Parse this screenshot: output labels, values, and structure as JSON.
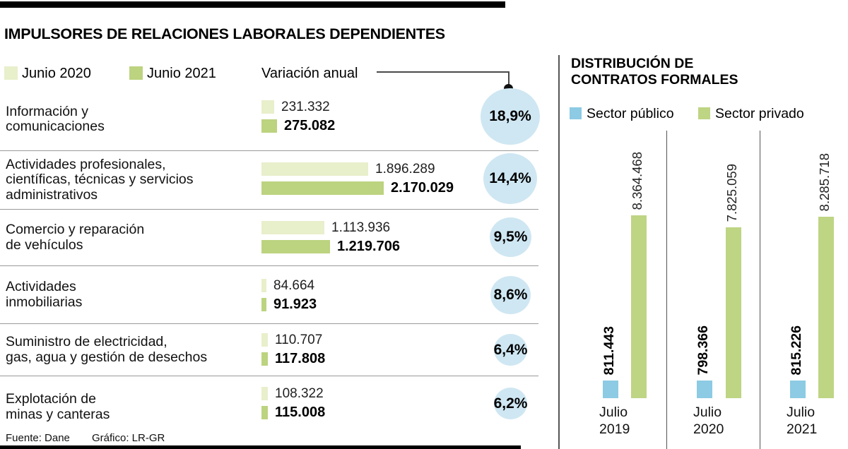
{
  "title": "IMPULSORES DE RELACIONES LABORALES DEPENDIENTES",
  "footer": {
    "source": "Fuente: Dane",
    "credit": "Gráfico: LR-GR"
  },
  "colors": {
    "junio2020": "#e8efcb",
    "junio2021": "#bcd37f",
    "sector_publico": "#8ccbe3",
    "sector_privado": "#bed584",
    "bubble": "#cfe7f2"
  },
  "left_chart": {
    "legend_2020": "Junio 2020",
    "legend_2021": "Junio 2021",
    "legend_variation": "Variación anual",
    "rows": [
      {
        "label_lines": [
          "Información y",
          "comunicaciones"
        ],
        "v2020": 231332,
        "v2021": 275082,
        "v2020_label": "231.332",
        "v2021_label": "275.082",
        "pct_label": "18,9%",
        "bubble_d": 84
      },
      {
        "label_lines": [
          "Actividades profesionales,",
          "científicas, técnicas y servicios",
          "administrativos"
        ],
        "v2020": 1896289,
        "v2021": 2170029,
        "v2020_label": "1.896.289",
        "v2021_label": "2.170.029",
        "pct_label": "14,4%",
        "bubble_d": 76
      },
      {
        "label_lines": [
          "Comercio y reparación",
          "de vehículos"
        ],
        "v2020": 1113936,
        "v2021": 1219706,
        "v2020_label": "1.113.936",
        "v2021_label": "1.219.706",
        "pct_label": "9,5%",
        "bubble_d": 59
      },
      {
        "label_lines": [
          "Actividades",
          "inmobiliarias"
        ],
        "v2020": 84664,
        "v2021": 91923,
        "v2020_label": "84.664",
        "v2021_label": "91.923",
        "pct_label": "8,6%",
        "bubble_d": 57
      },
      {
        "label_lines": [
          "Suministro de electricidad,",
          "gas, agua y gestión de desechos"
        ],
        "v2020": 110707,
        "v2021": 117808,
        "v2020_label": "110.707",
        "v2021_label": "117.808",
        "pct_label": "6,4%",
        "bubble_d": 47
      },
      {
        "label_lines": [
          "Explotación de",
          "minas y canteras"
        ],
        "v2020": 108322,
        "v2021": 115008,
        "v2020_label": "108.322",
        "v2021_label": "115.008",
        "pct_label": "6,2%",
        "bubble_d": 47
      }
    ]
  },
  "right_chart": {
    "heading_line1": "DISTRIBUCIÓN DE",
    "heading_line2": "CONTRATOS FORMALES",
    "legend_public": "Sector público",
    "legend_private": "Sector privado",
    "columns": [
      {
        "label_line1": "Julio",
        "label_line2": "2019",
        "public": 811443,
        "private": 8364468,
        "public_label": "811.443",
        "private_label": "8.364.468"
      },
      {
        "label_line1": "Julio",
        "label_line2": "2020",
        "public": 798366,
        "private": 7825059,
        "public_label": "798.366",
        "private_label": "7.825.059"
      },
      {
        "label_line1": "Julio",
        "label_line2": "2021",
        "public": 815226,
        "private": 8285718,
        "public_label": "815.226",
        "private_label": "8.285.718"
      }
    ]
  },
  "chart_data": [
    {
      "type": "bar",
      "orientation": "horizontal",
      "title": "IMPULSORES DE RELACIONES LABORALES DEPENDIENTES",
      "categories": [
        "Información y comunicaciones",
        "Actividades profesionales, científicas, técnicas y servicios administrativos",
        "Comercio y reparación de vehículos",
        "Actividades inmobiliarias",
        "Suministro de electricidad, gas, agua y gestión de desechos",
        "Explotación de minas y canteras"
      ],
      "series": [
        {
          "name": "Junio 2020",
          "values": [
            231332,
            1896289,
            1113936,
            84664,
            110707,
            108322
          ]
        },
        {
          "name": "Junio 2021",
          "values": [
            275082,
            2170029,
            1219706,
            91923,
            117808,
            115008
          ]
        }
      ],
      "annotations": {
        "label": "Variación anual",
        "values_pct": [
          18.9,
          14.4,
          9.5,
          8.6,
          6.4,
          6.2
        ],
        "labels": [
          "18,9%",
          "14,4%",
          "9,5%",
          "8,6%",
          "6,4%",
          "6,2%"
        ]
      },
      "legend_position": "top",
      "grid": false,
      "source": "Fuente: Dane",
      "credit": "Gráfico: LR-GR"
    },
    {
      "type": "bar",
      "orientation": "vertical",
      "title": "DISTRIBUCIÓN DE CONTRATOS FORMALES",
      "categories": [
        "Julio 2019",
        "Julio 2020",
        "Julio 2021"
      ],
      "series": [
        {
          "name": "Sector público",
          "values": [
            811443,
            798366,
            815226
          ]
        },
        {
          "name": "Sector privado",
          "values": [
            8364468,
            7825059,
            8285718
          ]
        }
      ],
      "legend_position": "top",
      "grid": false
    }
  ]
}
